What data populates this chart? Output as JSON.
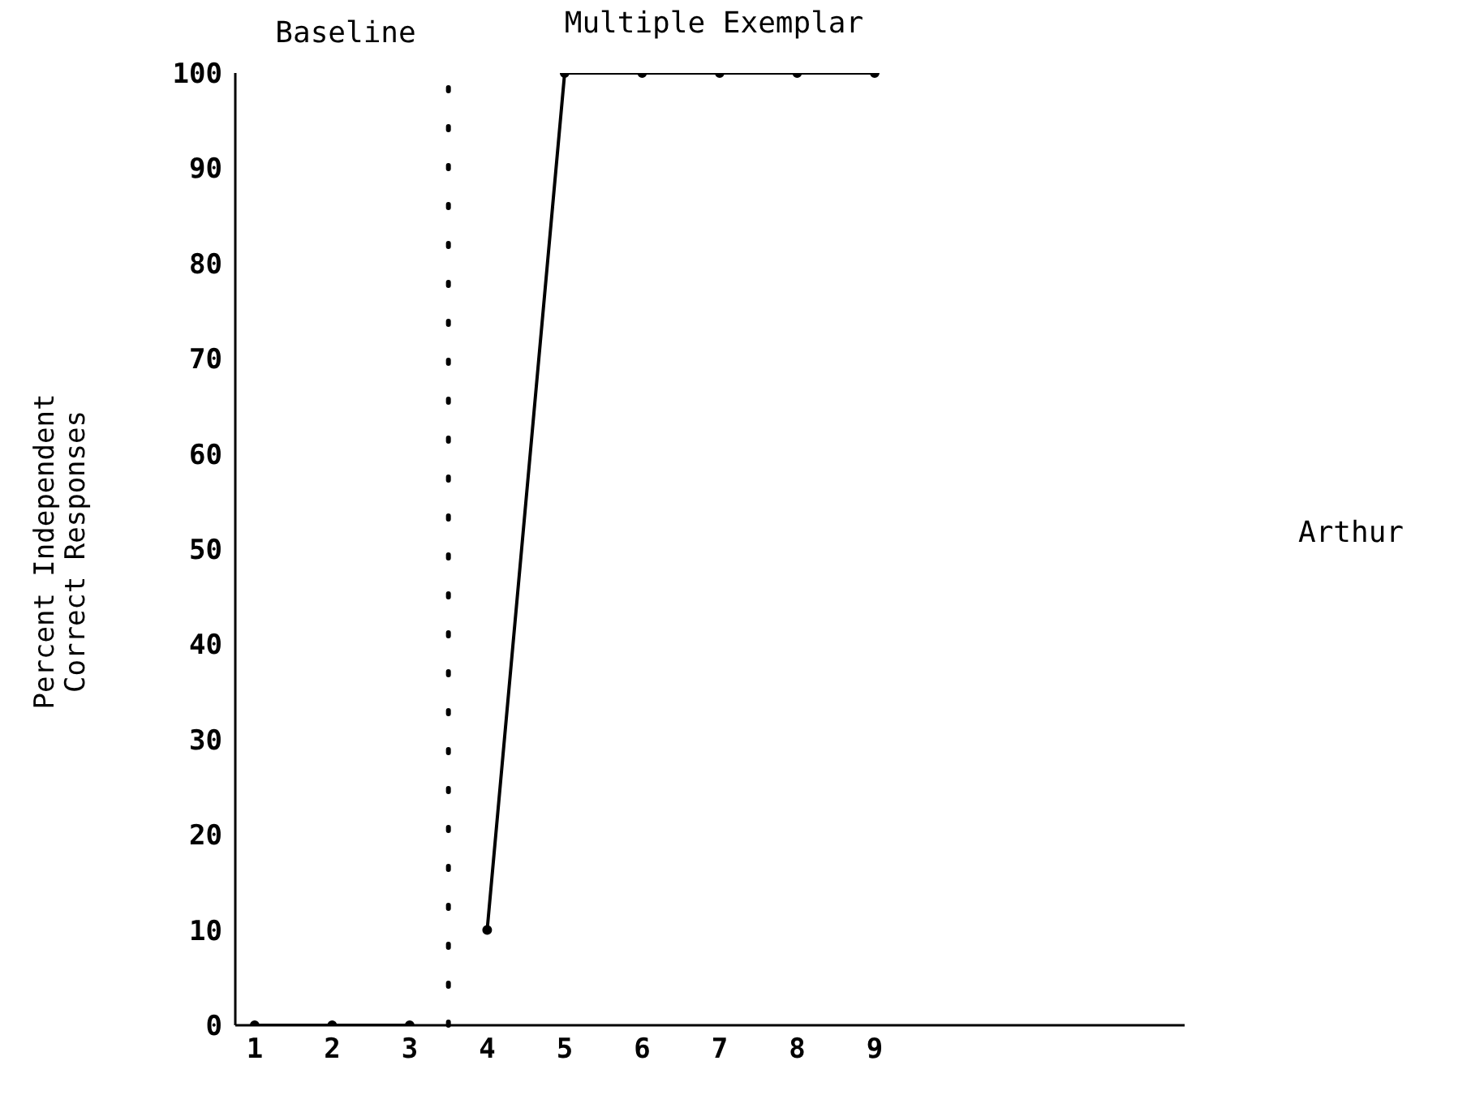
{
  "chart_data": {
    "type": "line",
    "ylabel": "Percent Independent Correct Responses",
    "annotations": [
      "Baseline",
      "Multiple Exemplar",
      "Arthur"
    ],
    "series": [
      {
        "x": [
          1,
          2,
          3
        ],
        "values": [
          0,
          0,
          0
        ],
        "color": "#000000"
      },
      {
        "x": [
          4,
          5,
          6,
          7,
          8,
          9
        ],
        "values": [
          10,
          100,
          100,
          100,
          100,
          100
        ],
        "color": "#000000"
      }
    ],
    "xlim": [
      0.75,
      13
    ],
    "xticks": [
      1,
      2,
      3,
      4,
      5,
      6,
      7,
      8,
      9
    ],
    "ylim": [
      0,
      100
    ],
    "yticks": [
      0,
      10,
      20,
      30,
      40,
      50,
      60,
      70,
      80,
      90,
      100
    ],
    "ref_lines": [
      {
        "axis": "x",
        "value": 3.5,
        "line_style": "dotted",
        "color": "#000000"
      }
    ],
    "marker": "circle",
    "line_style": "solid",
    "grid": false,
    "legend": false
  }
}
